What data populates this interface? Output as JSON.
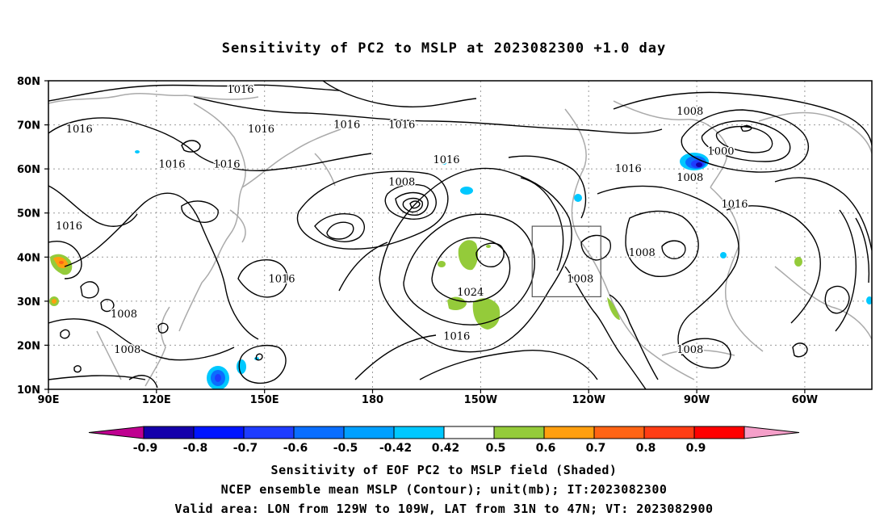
{
  "title": "Sensitivity of PC2 to MSLP at 2023082300 +1.0 day",
  "lat_labels": [
    "80N",
    "70N",
    "60N",
    "50N",
    "40N",
    "30N",
    "20N",
    "10N"
  ],
  "lon_labels": [
    "90E",
    "120E",
    "150E",
    "180",
    "150W",
    "120W",
    "90W",
    "60W"
  ],
  "contour_labels": [
    {
      "text": "1016",
      "lon": 146,
      "lat": 78
    },
    {
      "text": "1016",
      "lon": 99,
      "lat": 69
    },
    {
      "text": "1016",
      "lon": 177,
      "lat": 70
    },
    {
      "text": "1016",
      "lon": 152,
      "lat": 69
    },
    {
      "text": "1016",
      "lon": 193,
      "lat": 70
    },
    {
      "text": "1016",
      "lon": 142,
      "lat": 61
    },
    {
      "text": "1016",
      "lon": 126,
      "lat": 61
    },
    {
      "text": "1016",
      "lon": 206,
      "lat": 62
    },
    {
      "text": "1008",
      "lon": 193,
      "lat": 57
    },
    {
      "text": "1016",
      "lon": 259,
      "lat": 60
    },
    {
      "text": "1008",
      "lon": 277,
      "lat": 73
    },
    {
      "text": "1000",
      "lon": 286,
      "lat": 64
    },
    {
      "text": "1008",
      "lon": 277,
      "lat": 58
    },
    {
      "text": "1016",
      "lon": 290,
      "lat": 52
    },
    {
      "text": "1016",
      "lon": 96,
      "lat": 47
    },
    {
      "text": "1008",
      "lon": 263,
      "lat": 41
    },
    {
      "text": "1016",
      "lon": 158,
      "lat": 35
    },
    {
      "text": "1008",
      "lon": 245,
      "lat": 35
    },
    {
      "text": "1024",
      "lon": 213,
      "lat": 32
    },
    {
      "text": "1008",
      "lon": 112,
      "lat": 27
    },
    {
      "text": "1016",
      "lon": 209,
      "lat": 22
    },
    {
      "text": "1008",
      "lon": 113,
      "lat": 19
    },
    {
      "text": "1008",
      "lon": 277,
      "lat": 19
    }
  ],
  "valid_area": {
    "lon_min": -129,
    "lon_max": -109,
    "lat_min": 31,
    "lat_max": 47
  },
  "colorbar": {
    "labels": [
      "-0.9",
      "-0.8",
      "-0.7",
      "-0.6",
      "-0.5",
      "-0.42",
      "0.42",
      "0.5",
      "0.6",
      "0.7",
      "0.8",
      "0.9"
    ],
    "colors": [
      "#1400ab",
      "#0014ff",
      "#1e3cff",
      "#0a6eff",
      "#00a0ff",
      "#00c8ff",
      "#ffffff",
      "#94cb3a",
      "#ff9f0f",
      "#ff6414",
      "#ff3d14",
      "#ff0000"
    ],
    "low_end_color": "#bf0090",
    "high_end_color": "#f59fc9"
  },
  "captions": [
    "Sensitivity of EOF PC2 to MSLP field (Shaded)",
    "NCEP ensemble mean MSLP (Contour); unit(mb); IT:2023082300",
    "Valid area: LON from 129W to 109W, LAT from 31N to 47N; VT: 2023082900"
  ]
}
